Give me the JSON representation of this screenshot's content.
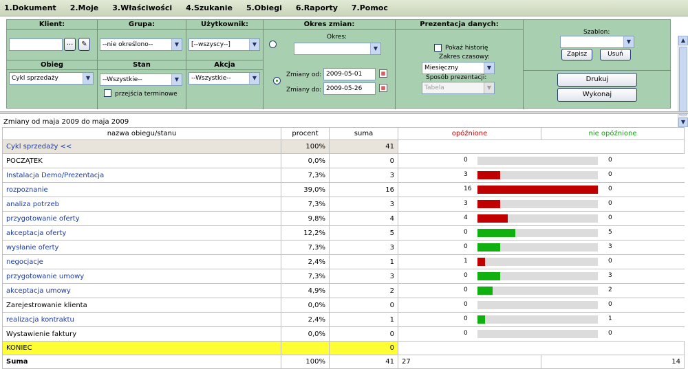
{
  "menu": [
    "1.Dokument",
    "2.Moje",
    "3.Właściwości",
    "4.Szukanie",
    "5.Obiegi",
    "6.Raporty",
    "7.Pomoc"
  ],
  "filters": {
    "klient_label": "Klient:",
    "grupa_label": "Grupa:",
    "grupa_value": "--nie określono--",
    "uzytkownik_label": "Użytkownik:",
    "uzytkownik_value": "[--wszyscy--]",
    "okres_zmian_label": "Okres zmian:",
    "okres_label": "Okres:",
    "prezentacja_label": "Prezentacja danych:",
    "pokaz_historie": "Pokaż historię",
    "zakres_label": "Zakres czasowy:",
    "zakres_value": "Miesięczny",
    "sposob_label": "Sposób prezentacji:",
    "sposob_value": "Tabela",
    "szablon_label": "Szablon:",
    "zapisz": "Zapisz",
    "usun": "Usuń",
    "drukuj": "Drukuj",
    "wykonaj": "Wykonaj",
    "obieg_label": "Obieg",
    "obieg_value": "Cykl sprzedaży",
    "stan_label": "Stan",
    "stan_value": "--Wszystkie--",
    "przejscia": "przejścia terminowe",
    "akcja_label": "Akcja",
    "akcja_value": "--Wszystkie--",
    "zmiany_od_label": "Zmiany od:",
    "zmiany_od_value": "2009-05-01",
    "zmiany_do_label": "Zmiany do:",
    "zmiany_do_value": "2009-05-26"
  },
  "caption": "Zmiany od maja 2009 do maja 2009",
  "table": {
    "headers": {
      "name": "nazwa obiegu/stanu",
      "percent": "procent",
      "sum": "suma",
      "delayed": "opóźnione",
      "not_delayed": "nie opóźnione"
    },
    "group": {
      "name": "Cykl sprzedaży <<",
      "percent": "100%",
      "sum": "41"
    },
    "rows": [
      {
        "name": "POCZĄTEK",
        "percent": "0,0%",
        "sum": "0",
        "delayed": "0",
        "not_delayed": "0",
        "link": false,
        "color": "none",
        "fill": 0
      },
      {
        "name": "Instalacja Demo/Prezentacja",
        "percent": "7,3%",
        "sum": "3",
        "delayed": "3",
        "not_delayed": "0",
        "link": true,
        "color": "#c00000",
        "fill": 0.1875
      },
      {
        "name": "rozpoznanie",
        "percent": "39,0%",
        "sum": "16",
        "delayed": "16",
        "not_delayed": "0",
        "link": true,
        "color": "#c00000",
        "fill": 1.0
      },
      {
        "name": "analiza potrzeb",
        "percent": "7,3%",
        "sum": "3",
        "delayed": "3",
        "not_delayed": "0",
        "link": true,
        "color": "#c00000",
        "fill": 0.1875
      },
      {
        "name": "przygotowanie oferty",
        "percent": "9,8%",
        "sum": "4",
        "delayed": "4",
        "not_delayed": "0",
        "link": true,
        "color": "#c00000",
        "fill": 0.25
      },
      {
        "name": "akceptacja oferty",
        "percent": "12,2%",
        "sum": "5",
        "delayed": "0",
        "not_delayed": "5",
        "link": true,
        "color": "#10b010",
        "fill": 0.3125
      },
      {
        "name": "wysłanie oferty",
        "percent": "7,3%",
        "sum": "3",
        "delayed": "0",
        "not_delayed": "3",
        "link": true,
        "color": "#10b010",
        "fill": 0.1875
      },
      {
        "name": "negocjacje",
        "percent": "2,4%",
        "sum": "1",
        "delayed": "1",
        "not_delayed": "0",
        "link": true,
        "color": "#c00000",
        "fill": 0.0625
      },
      {
        "name": "przygotowanie umowy",
        "percent": "7,3%",
        "sum": "3",
        "delayed": "0",
        "not_delayed": "3",
        "link": true,
        "color": "#10b010",
        "fill": 0.1875
      },
      {
        "name": "akceptacja umowy",
        "percent": "4,9%",
        "sum": "2",
        "delayed": "0",
        "not_delayed": "2",
        "link": true,
        "color": "#10b010",
        "fill": 0.125
      },
      {
        "name": "Zarejestrowanie klienta",
        "percent": "0,0%",
        "sum": "0",
        "delayed": "0",
        "not_delayed": "0",
        "link": false,
        "color": "none",
        "fill": 0
      },
      {
        "name": "realizacja kontraktu",
        "percent": "2,4%",
        "sum": "1",
        "delayed": "0",
        "not_delayed": "1",
        "link": true,
        "color": "#10b010",
        "fill": 0.0625
      },
      {
        "name": "Wystawienie faktury",
        "percent": "0,0%",
        "sum": "0",
        "delayed": "0",
        "not_delayed": "0",
        "link": false,
        "color": "none",
        "fill": 0
      }
    ],
    "end": {
      "name": "KONIEC",
      "sum": "0"
    },
    "total": {
      "name": "Suma",
      "percent": "100%",
      "sum": "41",
      "delayed": "27",
      "not_delayed": "14"
    }
  },
  "colors": {
    "panel": "#a8cfb0",
    "delayed": "#c00000",
    "not_delayed": "#10b010",
    "end_row": "#ffff33"
  }
}
